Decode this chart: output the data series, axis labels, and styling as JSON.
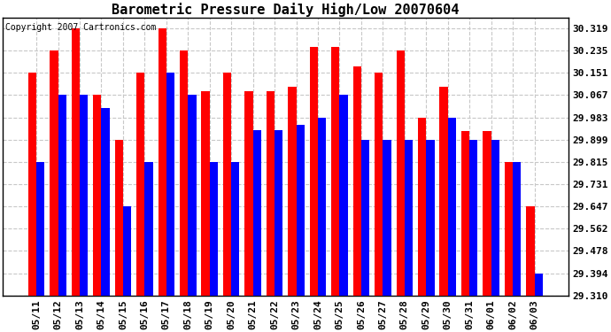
{
  "title": "Barometric Pressure Daily High/Low 20070604",
  "copyright": "Copyright 2007 Cartronics.com",
  "dates": [
    "05/11",
    "05/12",
    "05/13",
    "05/14",
    "05/15",
    "05/16",
    "05/17",
    "05/18",
    "05/19",
    "05/20",
    "05/21",
    "05/22",
    "05/23",
    "05/24",
    "05/25",
    "05/26",
    "05/27",
    "05/28",
    "05/29",
    "05/30",
    "05/31",
    "06/01",
    "06/02",
    "06/03"
  ],
  "highs": [
    30.151,
    30.235,
    30.319,
    30.067,
    29.899,
    30.151,
    30.319,
    30.235,
    30.083,
    30.151,
    30.083,
    30.083,
    30.099,
    30.25,
    30.25,
    30.175,
    30.151,
    30.235,
    29.983,
    30.099,
    29.931,
    29.931,
    29.815,
    29.647
  ],
  "lows": [
    29.815,
    30.067,
    30.067,
    30.019,
    29.647,
    29.815,
    30.151,
    30.067,
    29.815,
    29.815,
    29.935,
    29.935,
    29.955,
    29.983,
    30.067,
    29.899,
    29.899,
    29.899,
    29.899,
    29.983,
    29.899,
    29.899,
    29.815,
    29.394
  ],
  "high_color": "#ff0000",
  "low_color": "#0000ff",
  "bg_color": "#ffffff",
  "plot_bg_color": "#ffffff",
  "grid_color": "#c8c8c8",
  "yticks": [
    29.31,
    29.394,
    29.478,
    29.562,
    29.647,
    29.731,
    29.815,
    29.899,
    29.983,
    30.067,
    30.151,
    30.235,
    30.319
  ],
  "ymin": 29.31,
  "ymax": 30.36,
  "title_fontsize": 11,
  "copyright_fontsize": 7,
  "tick_fontsize": 8,
  "bar_width": 0.38
}
